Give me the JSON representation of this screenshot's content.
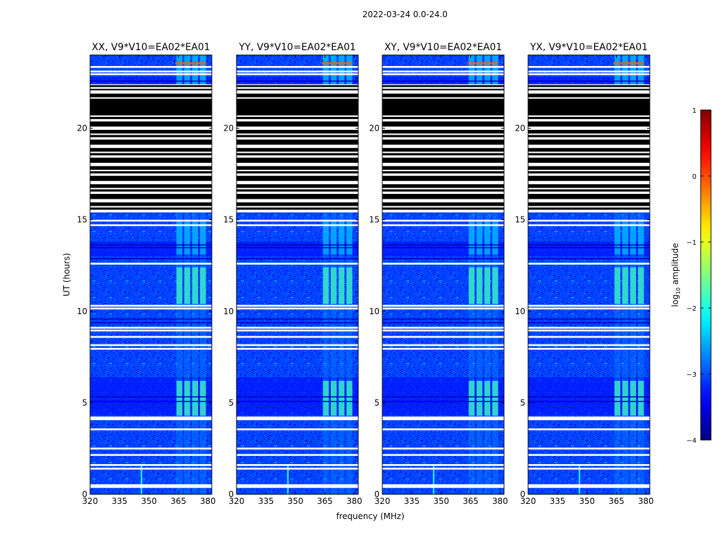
{
  "chart_data": {
    "type": "heatmap",
    "title": "2022-03-24 0.0-24.0",
    "xlabel": "frequency (MHz)",
    "ylabel": "UT (hours)",
    "xlim": [
      320,
      382
    ],
    "ylim": [
      0,
      24
    ],
    "x_ticks": [
      "320",
      "335",
      "350",
      "365",
      "380"
    ],
    "y_ticks": [
      "0",
      "5",
      "10",
      "15",
      "20"
    ],
    "colorbar": {
      "label": "log10 amplitude",
      "label_base": "log",
      "label_sub": "10",
      "label_rest": " amplitude",
      "range": [
        -4,
        1
      ],
      "ticks": [
        "1",
        "0",
        "−1",
        "−2",
        "−3",
        "−4"
      ],
      "colormap": "jet"
    },
    "panels": [
      {
        "title": "XX, V9*V10=EA02*EA01",
        "pol": "XX"
      },
      {
        "title": "YY, V9*V10=EA02*EA01",
        "pol": "YY"
      },
      {
        "title": "XY, V9*V10=EA02*EA01",
        "pol": "XY"
      },
      {
        "title": "YX, V9*V10=EA02*EA01",
        "pol": "YX"
      }
    ],
    "flagged_ut_hours": [
      [
        15.4,
        22.4
      ]
    ],
    "rfi_bands_mhz": [
      [
        364,
        367
      ],
      [
        368,
        371
      ],
      [
        372,
        375
      ],
      [
        376,
        379
      ]
    ],
    "rfi_active_ut_hours": [
      [
        4.3,
        6.2
      ],
      [
        10.4,
        12.4
      ],
      [
        13.1,
        14.9
      ],
      [
        22.3,
        24.0
      ]
    ]
  }
}
